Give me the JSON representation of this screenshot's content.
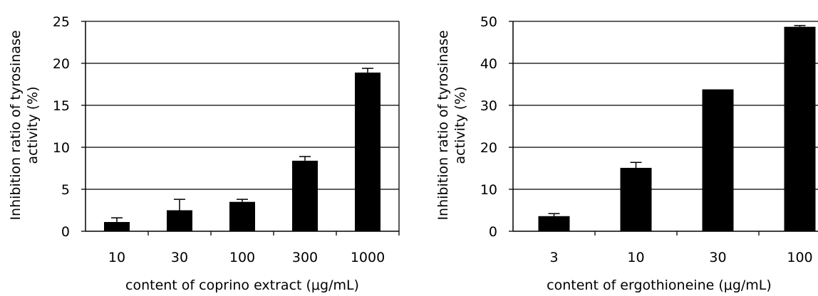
{
  "chart_data": [
    {
      "type": "bar",
      "title": "",
      "xlabel": "content of coprino extract (μg/mL)",
      "ylabel_line1": "Inhibition ratio of tyrosinase",
      "ylabel_line2": "activity (%)",
      "categories": [
        "10",
        "30",
        "100",
        "300",
        "1000"
      ],
      "values": [
        1.1,
        2.5,
        3.5,
        8.4,
        18.9
      ],
      "errors": [
        0.5,
        1.3,
        0.3,
        0.5,
        0.5
      ],
      "ylim": [
        0,
        25
      ],
      "yticks": [
        0,
        5,
        10,
        15,
        20,
        25
      ],
      "grid": true,
      "bar_color": "#000000"
    },
    {
      "type": "bar",
      "title": "",
      "xlabel": "content of ergothioneine (μg/mL)",
      "ylabel_line1": "Inhibition ratio of tyrosinase",
      "ylabel_line2": "activity (%)",
      "categories": [
        "3",
        "10",
        "30",
        "100"
      ],
      "values": [
        3.6,
        15.1,
        33.8,
        48.7
      ],
      "errors": [
        0.6,
        1.3,
        0,
        0.3
      ],
      "ylim": [
        0,
        50
      ],
      "yticks": [
        0,
        10,
        20,
        30,
        40,
        50
      ],
      "grid": true,
      "bar_color": "#000000"
    }
  ]
}
